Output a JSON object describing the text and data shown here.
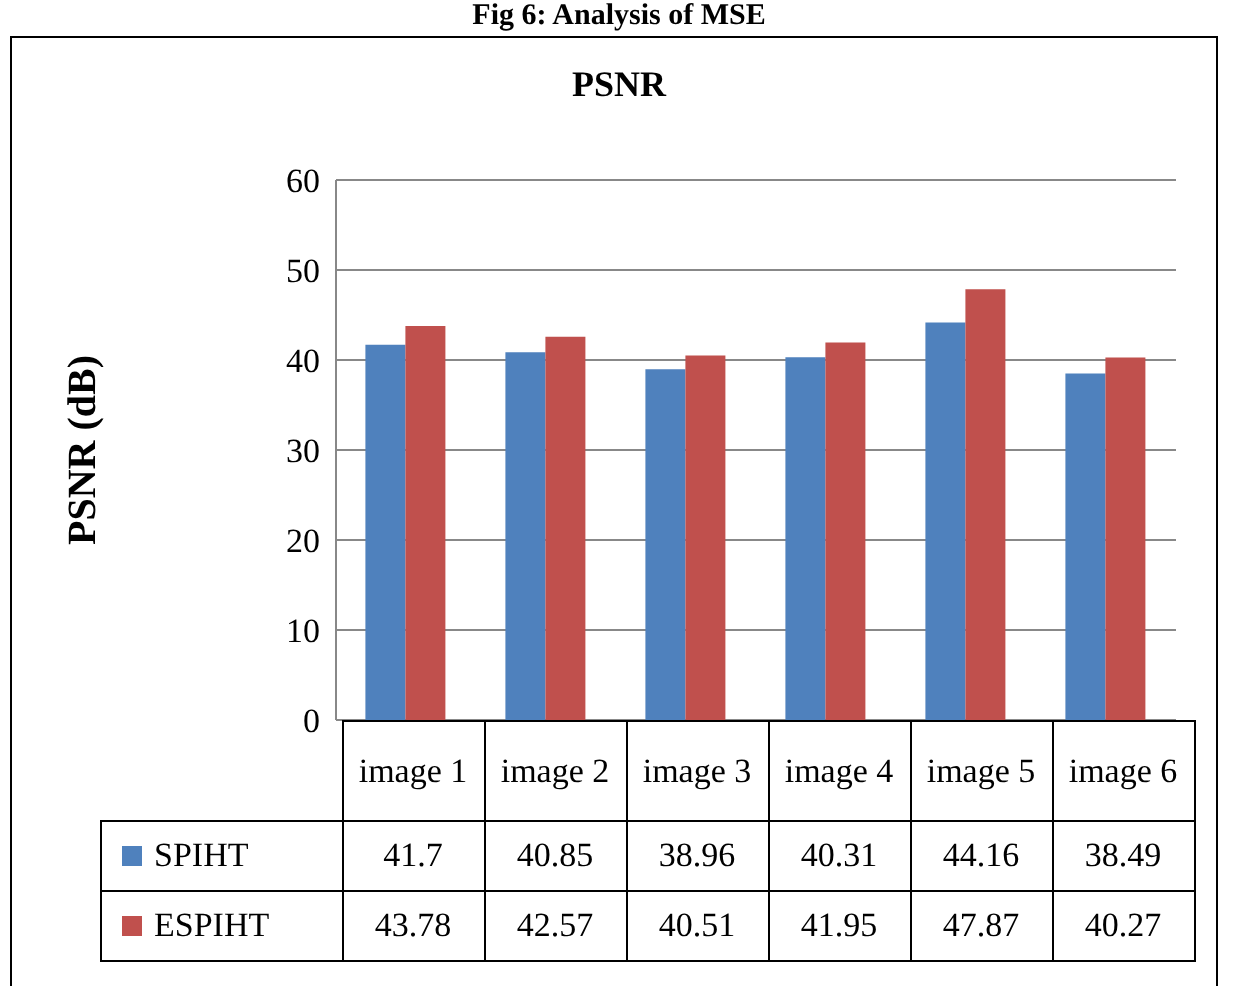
{
  "chart_data": {
    "type": "bar",
    "title": "PSNR",
    "ylabel": "PSNR (dB)",
    "annotations": [
      "Fig 6: Analysis of MSE"
    ],
    "categories": [
      "image 1",
      "image 2",
      "image 3",
      "image 4",
      "image 5",
      "image 6"
    ],
    "series": [
      {
        "name": "SPIHT",
        "color": "#4f81bd",
        "values": [
          41.7,
          40.85,
          38.96,
          40.31,
          44.16,
          38.49
        ]
      },
      {
        "name": "ESPIHT",
        "color": "#c0504d",
        "values": [
          43.78,
          42.57,
          40.51,
          41.95,
          47.87,
          40.27
        ]
      }
    ],
    "ylim": [
      0,
      60
    ],
    "yticks": [
      0,
      10,
      20,
      30,
      40,
      50,
      60
    ],
    "grid": "y",
    "legend": "bottom",
    "data_labels": true
  }
}
